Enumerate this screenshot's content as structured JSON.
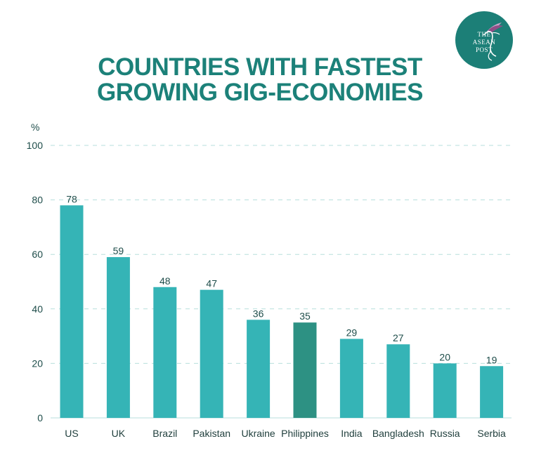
{
  "colors": {
    "title": "#1c8179",
    "bar": "#35b4b6",
    "bar_highlight": "#2d9183",
    "grid": "#b7dfdc",
    "logo_bg": "#1c7f77",
    "text": "#1e4d4a"
  },
  "logo": {
    "text_lines": [
      "THE",
      "ASEAN",
      "POST"
    ],
    "icon": "hummingbird-icon"
  },
  "chart_data": {
    "type": "bar",
    "title_lines": [
      "COUNTRIES WITH FASTEST",
      "GROWING GIG-ECONOMIES"
    ],
    "ylabel": "%",
    "xlabel": "",
    "ylim": [
      0,
      100
    ],
    "yticks": [
      0,
      20,
      40,
      60,
      80,
      100
    ],
    "categories": [
      "US",
      "UK",
      "Brazil",
      "Pakistan",
      "Ukraine",
      "Philippines",
      "India",
      "Bangladesh",
      "Russia",
      "Serbia"
    ],
    "values": [
      78,
      59,
      48,
      47,
      36,
      35,
      29,
      27,
      20,
      19
    ],
    "highlight": "Philippines",
    "grid": true,
    "legend": "none"
  }
}
